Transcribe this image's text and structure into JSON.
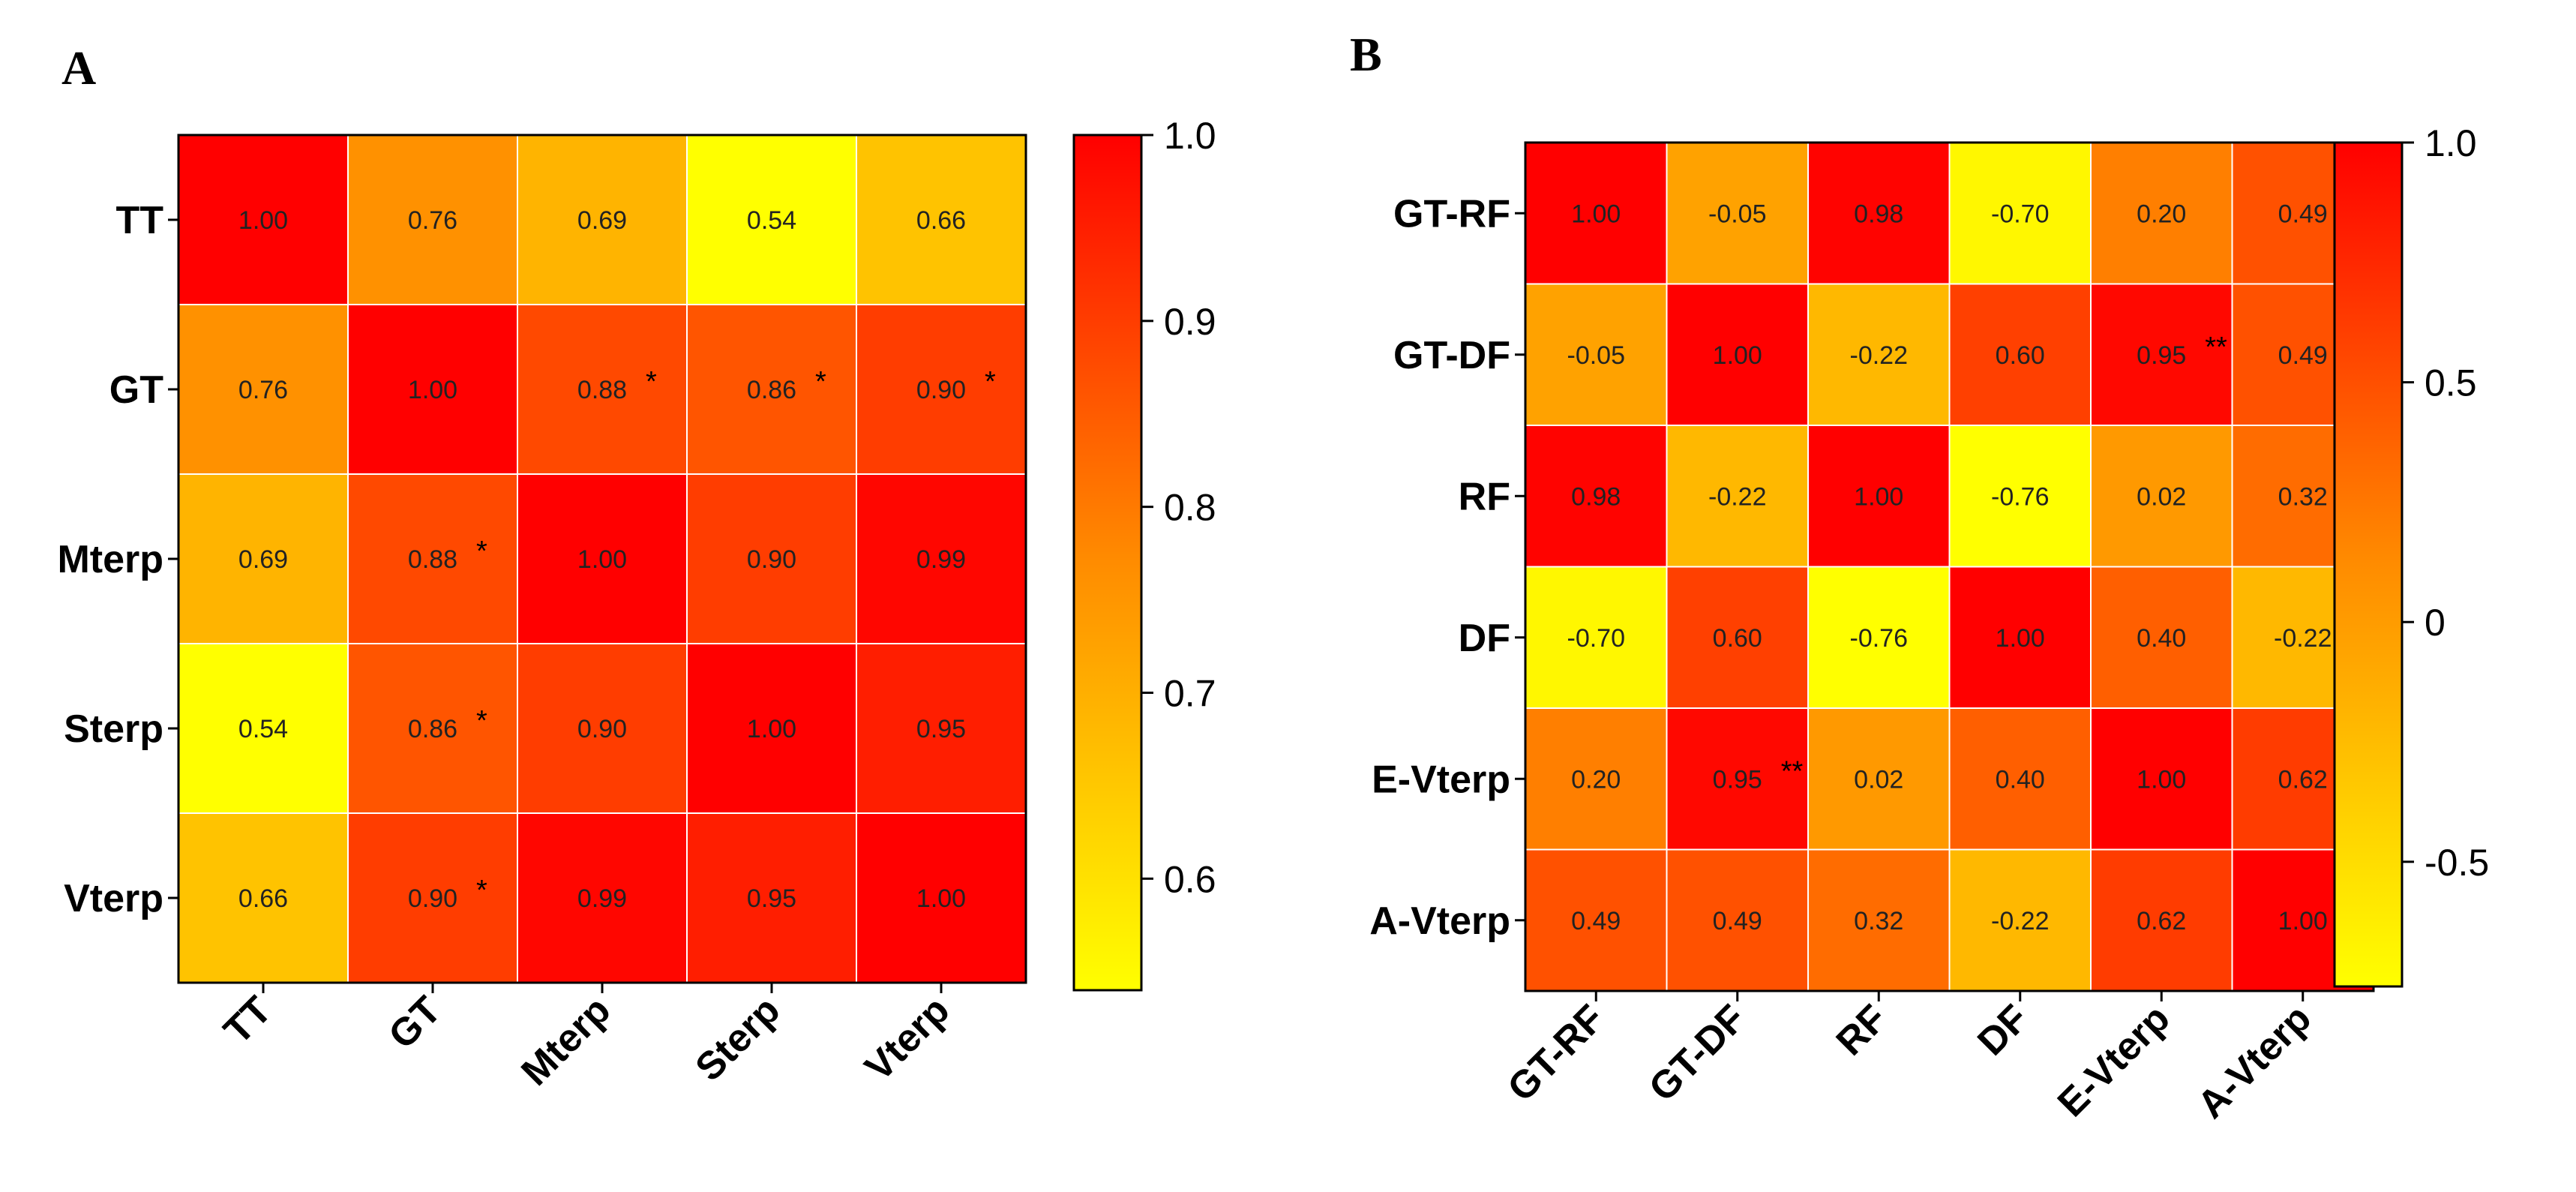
{
  "chart_data": [
    {
      "type": "heatmap",
      "panel_label": "A",
      "rows": [
        "TT",
        "GT",
        "Mterp",
        "Sterp",
        "Vterp"
      ],
      "columns": [
        "TT",
        "GT",
        "Mterp",
        "Sterp",
        "Vterp"
      ],
      "values": [
        [
          1.0,
          0.76,
          0.69,
          0.54,
          0.66
        ],
        [
          0.76,
          1.0,
          0.88,
          0.86,
          0.9
        ],
        [
          0.69,
          0.88,
          1.0,
          0.9,
          0.99
        ],
        [
          0.54,
          0.86,
          0.9,
          1.0,
          0.95
        ],
        [
          0.66,
          0.9,
          0.99,
          0.95,
          1.0
        ]
      ],
      "labels": [
        [
          "1.00",
          "0.76",
          "0.69",
          "0.54",
          "0.66"
        ],
        [
          "0.76",
          "1.00",
          "0.88",
          "0.86",
          "0.90"
        ],
        [
          "0.69",
          "0.88",
          "1.00",
          "0.90",
          "0.99"
        ],
        [
          "0.54",
          "0.86",
          "0.90",
          "1.00",
          "0.95"
        ],
        [
          "0.66",
          "0.90",
          "0.99",
          "0.95",
          "1.00"
        ]
      ],
      "significance": [
        [
          "",
          "",
          "",
          "",
          ""
        ],
        [
          "",
          "",
          "*",
          "*",
          "*"
        ],
        [
          "",
          "*",
          "",
          "",
          ""
        ],
        [
          "",
          "*",
          "",
          "",
          ""
        ],
        [
          "",
          "*",
          "",
          "",
          ""
        ]
      ],
      "color_scale": {
        "low": "#ffff00",
        "mid": "#ff8c00",
        "high": "#ff0000"
      },
      "colorbar": {
        "min": 0.54,
        "max": 1.0,
        "ticks": [
          0.6,
          0.7,
          0.8,
          0.9,
          1.0
        ],
        "tick_labels": [
          "0.6",
          "0.7",
          "0.8",
          "0.9",
          "1.0"
        ]
      }
    },
    {
      "type": "heatmap",
      "panel_label": "B",
      "rows": [
        "GT-RF",
        "GT-DF",
        "RF",
        "DF",
        "E-Vterp",
        "A-Vterp"
      ],
      "columns": [
        "GT-RF",
        "GT-DF",
        "RF",
        "DF",
        "E-Vterp",
        "A-Vterp"
      ],
      "values": [
        [
          1.0,
          -0.05,
          0.98,
          -0.7,
          0.2,
          0.49
        ],
        [
          -0.05,
          1.0,
          -0.22,
          0.6,
          0.95,
          0.49
        ],
        [
          0.98,
          -0.22,
          1.0,
          -0.76,
          0.02,
          0.32
        ],
        [
          -0.7,
          0.6,
          -0.76,
          1.0,
          0.4,
          -0.22
        ],
        [
          0.2,
          0.95,
          0.02,
          0.4,
          1.0,
          0.62
        ],
        [
          0.49,
          0.49,
          0.32,
          -0.22,
          0.62,
          1.0
        ]
      ],
      "labels": [
        [
          "1.00",
          "-0.05",
          "0.98",
          "-0.70",
          "0.20",
          "0.49"
        ],
        [
          "-0.05",
          "1.00",
          "-0.22",
          "0.60",
          "0.95",
          "0.49"
        ],
        [
          "0.98",
          "-0.22",
          "1.00",
          "-0.76",
          "0.02",
          "0.32"
        ],
        [
          "-0.70",
          "0.60",
          "-0.76",
          "1.00",
          "0.40",
          "-0.22"
        ],
        [
          "0.20",
          "0.95",
          "0.02",
          "0.40",
          "1.00",
          "0.62"
        ],
        [
          "0.49",
          "0.49",
          "0.32",
          "-0.22",
          "0.62",
          "1.00"
        ]
      ],
      "significance": [
        [
          "",
          "",
          "",
          "",
          "",
          ""
        ],
        [
          "",
          "",
          "",
          "",
          "**",
          ""
        ],
        [
          "",
          "",
          "",
          "",
          "",
          ""
        ],
        [
          "",
          "",
          "",
          "",
          "",
          ""
        ],
        [
          "",
          "**",
          "",
          "",
          "",
          ""
        ],
        [
          "",
          "",
          "",
          "",
          "",
          ""
        ]
      ],
      "color_scale": {
        "low": "#ffff00",
        "mid": "#ff8c00",
        "high": "#ff0000"
      },
      "colorbar": {
        "min": -0.76,
        "max": 1.0,
        "ticks": [
          -0.5,
          0,
          0.5,
          1.0
        ],
        "tick_labels": [
          "-0.5",
          "0",
          "0.5",
          "1.0"
        ]
      }
    }
  ]
}
